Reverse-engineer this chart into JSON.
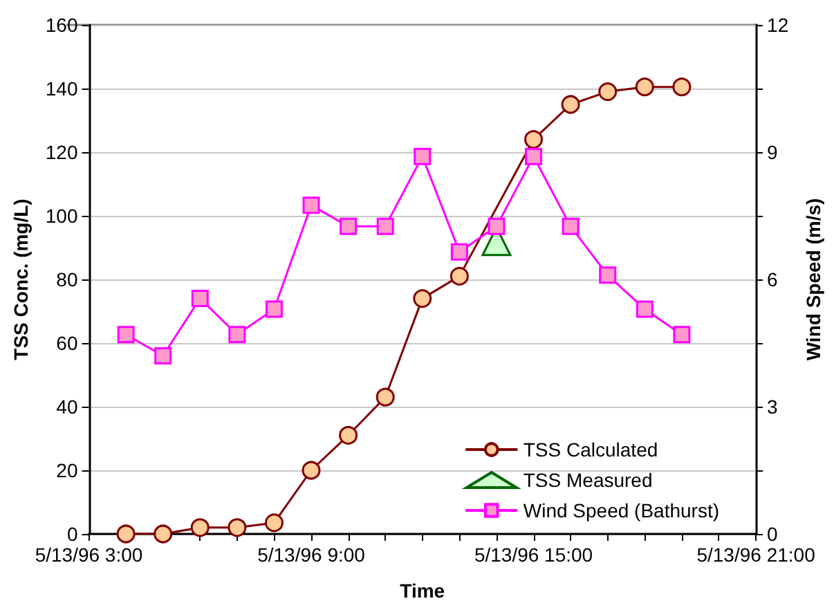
{
  "chart_data": {
    "type": "line",
    "xlabel": "Time",
    "ylabel": "TSS Conc. (mg/L)",
    "y2label": "Wind Speed (m/s)",
    "x": [
      "1996-05-13T04:00",
      "1996-05-13T05:00",
      "1996-05-13T06:00",
      "1996-05-13T07:00",
      "1996-05-13T08:00",
      "1996-05-13T09:00",
      "1996-05-13T10:00",
      "1996-05-13T11:00",
      "1996-05-13T12:00",
      "1996-05-13T13:00",
      "1996-05-13T14:00",
      "1996-05-13T15:00",
      "1996-05-13T16:00",
      "1996-05-13T17:00",
      "1996-05-13T18:00",
      "1996-05-13T19:00"
    ],
    "series": [
      {
        "name": "TSS Calculated",
        "color": "#800000",
        "marker": "circle",
        "values": [
          0,
          0,
          2,
          2,
          3.5,
          20,
          31,
          43,
          74,
          81,
          null,
          124,
          135,
          139,
          140.5,
          140.5
        ]
      },
      {
        "name": "TSS Measured",
        "type": "scatter",
        "color": "#006600",
        "marker": "triangle",
        "x": [
          "1996-05-13T14:00"
        ],
        "values": [
          92
        ]
      },
      {
        "name": "Wind Speed (Bathurst)",
        "color": "#ff00ff",
        "marker": "square",
        "axis": "y2",
        "values": [
          4.7,
          4.2,
          5.55,
          4.7,
          5.3,
          7.75,
          7.25,
          7.25,
          8.9,
          6.65,
          7.25,
          8.9,
          7.25,
          6.1,
          5.3,
          4.7
        ]
      }
    ],
    "xlim": [
      "1996-05-13T03:00",
      "1996-05-13T21:00"
    ],
    "xticks": [
      {
        "value": "1996-05-13T03:00",
        "label": "5/13/96 3:00"
      },
      {
        "value": "1996-05-13T04:00",
        "label": null
      },
      {
        "value": "1996-05-13T05:00",
        "label": null
      },
      {
        "value": "1996-05-13T06:00",
        "label": null
      },
      {
        "value": "1996-05-13T07:00",
        "label": null
      },
      {
        "value": "1996-05-13T08:00",
        "label": null
      },
      {
        "value": "1996-05-13T09:00",
        "label": "5/13/96 9:00"
      },
      {
        "value": "1996-05-13T10:00",
        "label": null
      },
      {
        "value": "1996-05-13T11:00",
        "label": null
      },
      {
        "value": "1996-05-13T12:00",
        "label": null
      },
      {
        "value": "1996-05-13T13:00",
        "label": null
      },
      {
        "value": "1996-05-13T14:00",
        "label": null
      },
      {
        "value": "1996-05-13T15:00",
        "label": "5/13/96 15:00"
      },
      {
        "value": "1996-05-13T16:00",
        "label": null
      },
      {
        "value": "1996-05-13T17:00",
        "label": null
      },
      {
        "value": "1996-05-13T18:00",
        "label": null
      },
      {
        "value": "1996-05-13T19:00",
        "label": null
      },
      {
        "value": "1996-05-13T20:00",
        "label": null
      },
      {
        "value": "1996-05-13T21:00",
        "label": "5/13/96 21:00"
      }
    ],
    "ylim": [
      0,
      160
    ],
    "yticks": [
      0,
      20,
      40,
      60,
      80,
      100,
      120,
      140,
      160
    ],
    "y2lim": [
      0,
      12
    ],
    "y2ticks": [
      0,
      {
        "value": 1.5,
        "label": null
      },
      3,
      {
        "value": 4.5,
        "label": null
      },
      6,
      {
        "value": 7.5,
        "label": null
      },
      9,
      {
        "value": 10.5,
        "label": null
      },
      12
    ],
    "grid": "y",
    "legend": "bottom right",
    "line_style": "solid"
  }
}
